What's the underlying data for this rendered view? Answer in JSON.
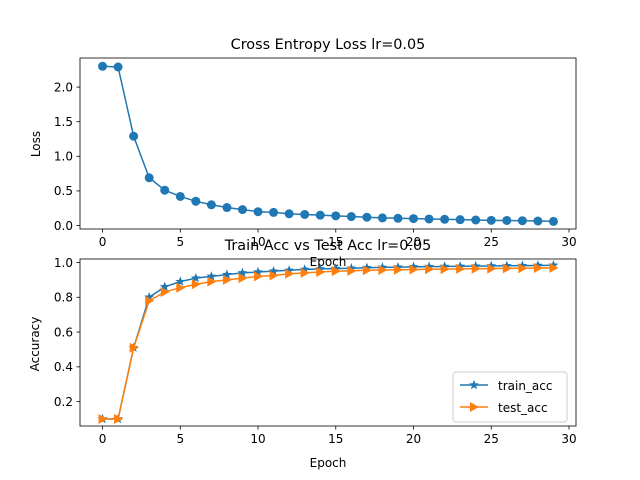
{
  "chart_data": [
    {
      "type": "line",
      "title": "Cross Entropy Loss    lr=0.05",
      "xlabel": "Epoch",
      "ylabel": "Loss",
      "xlim": [
        -1.45,
        30.45
      ],
      "ylim": [
        -0.05,
        2.42
      ],
      "xticks": [
        0,
        5,
        10,
        15,
        20,
        25,
        30
      ],
      "yticks": [
        0.0,
        0.5,
        1.0,
        1.5,
        2.0,
        2.5
      ],
      "ytick_labels": [
        "0.0",
        "0.5",
        "1.0",
        "1.5",
        "2.0",
        ""
      ],
      "grid": false,
      "series": [
        {
          "color": "#1f77b4",
          "marker": "circle",
          "x": [
            0,
            1,
            2,
            3,
            4,
            5,
            6,
            7,
            8,
            9,
            10,
            11,
            12,
            13,
            14,
            15,
            16,
            17,
            18,
            19,
            20,
            21,
            22,
            23,
            24,
            25,
            26,
            27,
            28,
            29
          ],
          "values": [
            2.3,
            2.29,
            1.29,
            0.69,
            0.51,
            0.42,
            0.35,
            0.3,
            0.26,
            0.23,
            0.2,
            0.19,
            0.17,
            0.16,
            0.15,
            0.14,
            0.13,
            0.12,
            0.11,
            0.105,
            0.1,
            0.095,
            0.09,
            0.085,
            0.08,
            0.075,
            0.073,
            0.07,
            0.065,
            0.06
          ]
        }
      ]
    },
    {
      "type": "line",
      "title": "Train Acc vs Test Acc    lr=0.05",
      "xlabel": "Epoch",
      "ylabel": "Accuracy",
      "xlim": [
        -1.45,
        30.45
      ],
      "ylim": [
        0.06,
        1.02
      ],
      "xticks": [
        0,
        5,
        10,
        15,
        20,
        25,
        30
      ],
      "yticks": [
        0.2,
        0.4,
        0.6,
        0.8,
        1.0
      ],
      "ytick_labels": [
        "0.2",
        "0.4",
        "0.6",
        "0.8",
        "1.0"
      ],
      "grid": false,
      "legend_position": "lower-right",
      "series": [
        {
          "name": "train_acc",
          "color": "#1f77b4",
          "marker": "star",
          "x": [
            0,
            1,
            2,
            3,
            4,
            5,
            6,
            7,
            8,
            9,
            10,
            11,
            12,
            13,
            14,
            15,
            16,
            17,
            18,
            19,
            20,
            21,
            22,
            23,
            24,
            25,
            26,
            27,
            28,
            29
          ],
          "values": [
            0.1,
            0.1,
            0.51,
            0.8,
            0.86,
            0.89,
            0.91,
            0.92,
            0.93,
            0.94,
            0.945,
            0.95,
            0.955,
            0.96,
            0.963,
            0.965,
            0.967,
            0.97,
            0.972,
            0.973,
            0.975,
            0.976,
            0.977,
            0.978,
            0.979,
            0.98,
            0.981,
            0.982,
            0.983,
            0.984
          ]
        },
        {
          "name": "test_acc",
          "color": "#ff7f0e",
          "marker": "triangle-right",
          "x": [
            0,
            1,
            2,
            3,
            4,
            5,
            6,
            7,
            8,
            9,
            10,
            11,
            12,
            13,
            14,
            15,
            16,
            17,
            18,
            19,
            20,
            21,
            22,
            23,
            24,
            25,
            26,
            27,
            28,
            29
          ],
          "values": [
            0.1,
            0.1,
            0.51,
            0.78,
            0.83,
            0.855,
            0.875,
            0.89,
            0.9,
            0.91,
            0.92,
            0.925,
            0.935,
            0.94,
            0.945,
            0.95,
            0.952,
            0.955,
            0.957,
            0.958,
            0.96,
            0.961,
            0.962,
            0.963,
            0.964,
            0.965,
            0.966,
            0.967,
            0.968,
            0.969
          ]
        }
      ]
    }
  ]
}
